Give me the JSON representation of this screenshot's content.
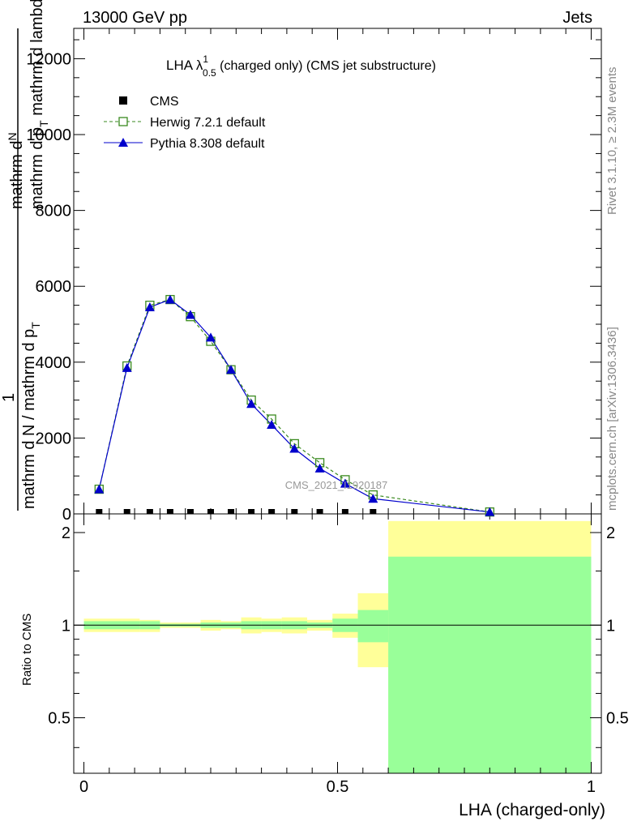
{
  "header": {
    "left": "13000 GeV pp",
    "right": "Jets"
  },
  "side_labels": {
    "rivet": "Rivet 3.1.10, ≥ 2.3M events",
    "mcplots": "mcplots.cern.ch [arXiv:1306.3436]"
  },
  "watermark": "CMS_2021_I1920187",
  "plot_title": {
    "prefix": "LHA λ",
    "sup": "1",
    "sub": "0.5",
    "suffix": " (charged only) (CMS jet substructure)"
  },
  "main_ylabel": {
    "numerator_a": "mathrm d",
    "numerator_b": "N",
    "numerator_c": "mathrm d p",
    "numerator_d": "T",
    "numerator_e": " mathrm d lambda",
    "fraction_one": "1",
    "denominator": "mathrm d N / mathrm d p",
    "denominator_b": "T"
  },
  "ratio_ylabel": "Ratio to CMS",
  "xlabel": "LHA (charged-only)",
  "legend": [
    {
      "label": "CMS",
      "color": "#000000",
      "marker": "square-filled"
    },
    {
      "label": "Herwig 7.2.1 default",
      "color": "#3a8a1f",
      "marker": "square-open",
      "line": "dashed"
    },
    {
      "label": "Pythia 8.308 default",
      "color": "#0000cc",
      "marker": "triangle-filled",
      "line": "solid"
    }
  ],
  "chart_data": [
    {
      "type": "line",
      "panel": "main",
      "xlim": [
        -0.02,
        1.02
      ],
      "ylim": [
        0,
        12800
      ],
      "y_ticks": [
        0,
        2000,
        4000,
        6000,
        8000,
        10000,
        12000
      ],
      "y_tick_labels": [
        "0",
        "2000",
        "4000",
        "6000",
        "8000",
        "10000",
        "12000"
      ],
      "series": [
        {
          "name": "CMS",
          "color": "#000000",
          "x": [
            0.03,
            0.085,
            0.13,
            0.17,
            0.21,
            0.25,
            0.29,
            0.33,
            0.37,
            0.415,
            0.465,
            0.515,
            0.57
          ],
          "y": [
            0,
            0,
            0,
            0,
            0,
            0,
            0,
            0,
            0,
            0,
            0,
            0,
            0
          ]
        },
        {
          "name": "Herwig 7.2.1 default",
          "color": "#3a8a1f",
          "x": [
            0.03,
            0.085,
            0.13,
            0.17,
            0.21,
            0.25,
            0.29,
            0.33,
            0.37,
            0.415,
            0.465,
            0.515,
            0.57,
            0.8
          ],
          "y": [
            650,
            3900,
            5500,
            5650,
            5200,
            4550,
            3800,
            3000,
            2500,
            1850,
            1350,
            900,
            500,
            50
          ]
        },
        {
          "name": "Pythia 8.308 default",
          "color": "#0000cc",
          "x": [
            0.03,
            0.085,
            0.13,
            0.17,
            0.21,
            0.25,
            0.29,
            0.33,
            0.37,
            0.415,
            0.465,
            0.515,
            0.57,
            0.8
          ],
          "y": [
            650,
            3850,
            5450,
            5650,
            5250,
            4650,
            3800,
            2900,
            2350,
            1720,
            1200,
            800,
            400,
            50
          ]
        }
      ]
    },
    {
      "type": "area",
      "panel": "ratio",
      "xlim": [
        -0.02,
        1.02
      ],
      "ylim": [
        0.33,
        2.3
      ],
      "y_ticks": [
        0.5,
        1,
        2
      ],
      "y_tick_labels": [
        "0.5",
        "1",
        "2"
      ],
      "x_ticks": [
        0,
        0.5,
        1
      ],
      "x_tick_labels": [
        "0",
        "0.5",
        "1"
      ],
      "bins": [
        {
          "x0": 0.0,
          "x1": 0.075,
          "stat_lo": 0.97,
          "stat_hi": 1.03,
          "tot_lo": 0.95,
          "tot_hi": 1.05
        },
        {
          "x0": 0.075,
          "x1": 0.11,
          "stat_lo": 0.97,
          "stat_hi": 1.03,
          "tot_lo": 0.95,
          "tot_hi": 1.05
        },
        {
          "x0": 0.11,
          "x1": 0.15,
          "stat_lo": 0.97,
          "stat_hi": 1.03,
          "tot_lo": 0.95,
          "tot_hi": 1.04
        },
        {
          "x0": 0.15,
          "x1": 0.19,
          "stat_lo": 0.99,
          "stat_hi": 1.01,
          "tot_lo": 0.98,
          "tot_hi": 1.02
        },
        {
          "x0": 0.19,
          "x1": 0.23,
          "stat_lo": 0.99,
          "stat_hi": 1.01,
          "tot_lo": 0.98,
          "tot_hi": 1.02
        },
        {
          "x0": 0.23,
          "x1": 0.27,
          "stat_lo": 0.98,
          "stat_hi": 1.02,
          "tot_lo": 0.96,
          "tot_hi": 1.04
        },
        {
          "x0": 0.27,
          "x1": 0.31,
          "stat_lo": 0.98,
          "stat_hi": 1.02,
          "tot_lo": 0.97,
          "tot_hi": 1.03
        },
        {
          "x0": 0.31,
          "x1": 0.35,
          "stat_lo": 0.97,
          "stat_hi": 1.03,
          "tot_lo": 0.94,
          "tot_hi": 1.06
        },
        {
          "x0": 0.35,
          "x1": 0.39,
          "stat_lo": 0.97,
          "stat_hi": 1.03,
          "tot_lo": 0.95,
          "tot_hi": 1.05
        },
        {
          "x0": 0.39,
          "x1": 0.44,
          "stat_lo": 0.97,
          "stat_hi": 1.03,
          "tot_lo": 0.94,
          "tot_hi": 1.06
        },
        {
          "x0": 0.44,
          "x1": 0.49,
          "stat_lo": 0.98,
          "stat_hi": 1.02,
          "tot_lo": 0.96,
          "tot_hi": 1.04
        },
        {
          "x0": 0.49,
          "x1": 0.54,
          "stat_lo": 0.95,
          "stat_hi": 1.05,
          "tot_lo": 0.91,
          "tot_hi": 1.09
        },
        {
          "x0": 0.54,
          "x1": 0.6,
          "stat_lo": 0.88,
          "stat_hi": 1.12,
          "tot_lo": 0.73,
          "tot_hi": 1.27
        },
        {
          "x0": 0.6,
          "x1": 1.0,
          "stat_lo": 0.33,
          "stat_hi": 1.67,
          "tot_lo": 0.33,
          "tot_hi": 2.18
        }
      ]
    }
  ],
  "colors": {
    "stat_band": "#99ff99",
    "total_band": "#ffff99",
    "cms": "#000000",
    "herwig": "#3a8a1f",
    "pythia": "#0000cc"
  }
}
